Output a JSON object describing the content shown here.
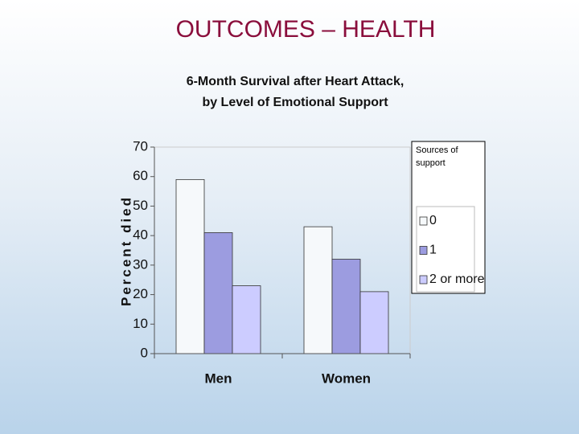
{
  "slide_title": "OUTCOMES – HEALTH",
  "chart_data": {
    "type": "bar",
    "title": [
      "6-Month Survival after Heart Attack,",
      "by Level of Emotional Support"
    ],
    "y_label": "Percent died",
    "categories": [
      "Men",
      "Women"
    ],
    "series": [
      {
        "name": "0",
        "color": "#f6f9fb",
        "values": [
          59,
          43
        ]
      },
      {
        "name": "1",
        "color": "#9c9ce0",
        "values": [
          41,
          32
        ]
      },
      {
        "name": "2 or more",
        "color": "#ccccff",
        "values": [
          23,
          21
        ]
      }
    ],
    "ylim": [
      0,
      70
    ],
    "yticks": [
      0,
      10,
      20,
      30,
      40,
      50,
      60,
      70
    ],
    "legend_title": "Sources of support",
    "legend_position": "right"
  }
}
